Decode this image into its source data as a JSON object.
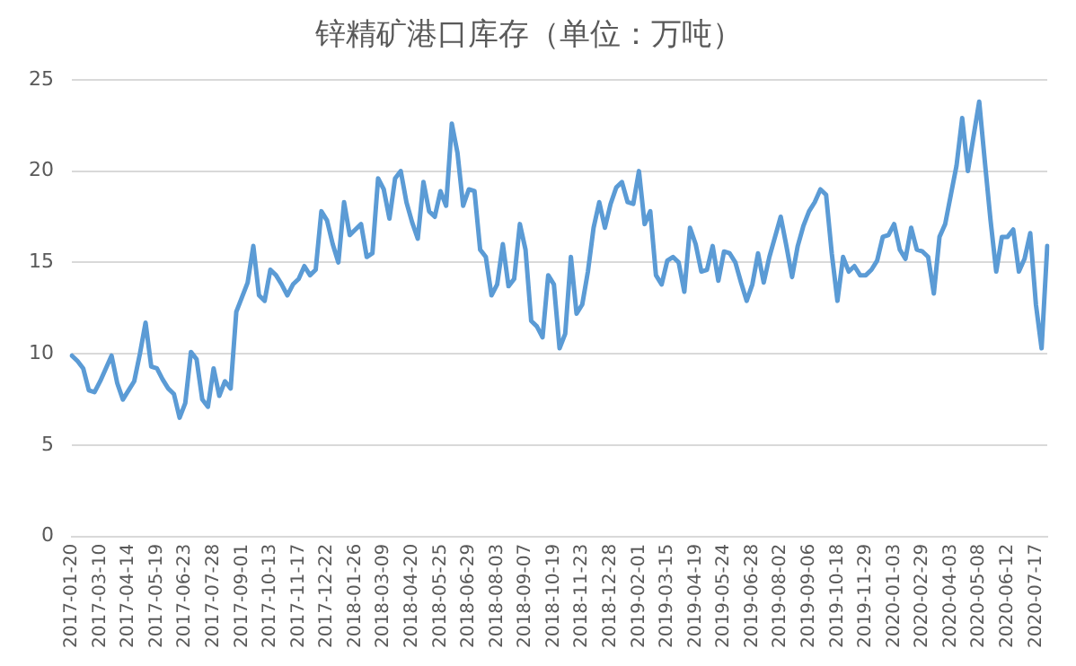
{
  "chart_data": {
    "type": "line",
    "title": "锌精矿港口库存（单位：万吨）",
    "categories": [
      "2017-01-20",
      null,
      null,
      null,
      null,
      "2017-03-10",
      null,
      null,
      null,
      null,
      "2017-04-14",
      null,
      null,
      null,
      null,
      "2017-05-19",
      null,
      null,
      null,
      null,
      "2017-06-23",
      null,
      null,
      null,
      null,
      "2017-07-28",
      null,
      null,
      null,
      null,
      "2017-09-01",
      null,
      null,
      null,
      null,
      "2017-10-13",
      null,
      null,
      null,
      null,
      "2017-11-17",
      null,
      null,
      null,
      null,
      "2017-12-22",
      null,
      null,
      null,
      null,
      "2018-01-26",
      null,
      null,
      null,
      null,
      "2018-03-09",
      null,
      null,
      null,
      null,
      "2018-04-20",
      null,
      null,
      null,
      null,
      "2018-05-25",
      null,
      null,
      null,
      null,
      "2018-06-29",
      null,
      null,
      null,
      null,
      "2018-08-03",
      null,
      null,
      null,
      null,
      "2018-09-07",
      null,
      null,
      null,
      null,
      "2018-10-19",
      null,
      null,
      null,
      null,
      "2018-11-23",
      null,
      null,
      null,
      null,
      "2018-12-28",
      null,
      null,
      null,
      null,
      "2019-02-01",
      null,
      null,
      null,
      null,
      "2019-03-15",
      null,
      null,
      null,
      null,
      "2019-04-19",
      null,
      null,
      null,
      null,
      "2019-05-24",
      null,
      null,
      null,
      null,
      "2019-06-28",
      null,
      null,
      null,
      null,
      "2019-08-02",
      null,
      null,
      null,
      null,
      "2019-09-06",
      null,
      null,
      null,
      null,
      "2019-10-18",
      null,
      null,
      null,
      null,
      "2019-11-29",
      null,
      null,
      null,
      null,
      "2020-01-03",
      null,
      null,
      null,
      null,
      "2020-02-29",
      null,
      null,
      null,
      null,
      "2020-04-03",
      null,
      null,
      null,
      null,
      "2020-05-08",
      null,
      null,
      null,
      null,
      "2020-06-12",
      null,
      null,
      null,
      null,
      "2020-07-17",
      null,
      null
    ],
    "series": [
      {
        "color": "#5b9bd5",
        "values": [
          9.9,
          9.6,
          9.2,
          8.0,
          7.9,
          8.5,
          9.2,
          9.9,
          8.4,
          7.5,
          8.0,
          8.5,
          10.0,
          11.7,
          9.3,
          9.2,
          8.6,
          8.1,
          7.8,
          6.5,
          7.3,
          10.1,
          9.7,
          7.5,
          7.1,
          9.2,
          7.7,
          8.5,
          8.1,
          12.3,
          13.1,
          13.9,
          15.9,
          13.2,
          12.9,
          14.6,
          14.3,
          13.8,
          13.2,
          13.8,
          14.1,
          14.8,
          14.3,
          14.6,
          17.8,
          17.3,
          16.0,
          15.0,
          18.3,
          16.5,
          16.8,
          17.1,
          15.3,
          15.5,
          19.6,
          19.0,
          17.4,
          19.6,
          20.0,
          18.3,
          17.2,
          16.3,
          19.4,
          17.8,
          17.5,
          18.9,
          18.1,
          22.6,
          21.0,
          18.1,
          19.0,
          18.9,
          15.7,
          15.3,
          13.2,
          13.8,
          16.0,
          13.7,
          14.1,
          17.1,
          15.7,
          11.8,
          11.5,
          10.9,
          14.3,
          13.8,
          10.3,
          11.1,
          15.3,
          12.2,
          12.7,
          14.5,
          16.9,
          18.3,
          16.9,
          18.2,
          19.1,
          19.4,
          18.3,
          18.2,
          20.0,
          17.1,
          17.8,
          14.3,
          13.8,
          15.1,
          15.3,
          15.0,
          13.4,
          16.9,
          16.0,
          14.5,
          14.6,
          15.9,
          14.0,
          15.6,
          15.5,
          15.0,
          13.9,
          12.9,
          13.8,
          15.5,
          13.9,
          15.3,
          16.4,
          17.5,
          15.9,
          14.2,
          15.9,
          17.0,
          17.8,
          18.3,
          19.0,
          18.7,
          15.5,
          12.9,
          15.3,
          14.5,
          14.8,
          14.3,
          14.3,
          14.6,
          15.1,
          16.4,
          16.5,
          17.1,
          15.7,
          15.2,
          16.9,
          15.7,
          15.6,
          15.3,
          13.3,
          16.4,
          17.1,
          18.7,
          20.3,
          22.9,
          20.0,
          21.9,
          23.8,
          20.5,
          17.3,
          14.5,
          16.4,
          16.4,
          16.8,
          14.5,
          15.2,
          16.6,
          12.7,
          10.3,
          15.9
        ]
      }
    ],
    "ylim": [
      0,
      25
    ],
    "yticks": [
      0,
      5,
      10,
      15,
      20,
      25
    ],
    "grid": "y",
    "legend": false,
    "marker": "none",
    "line_style": "solid"
  }
}
